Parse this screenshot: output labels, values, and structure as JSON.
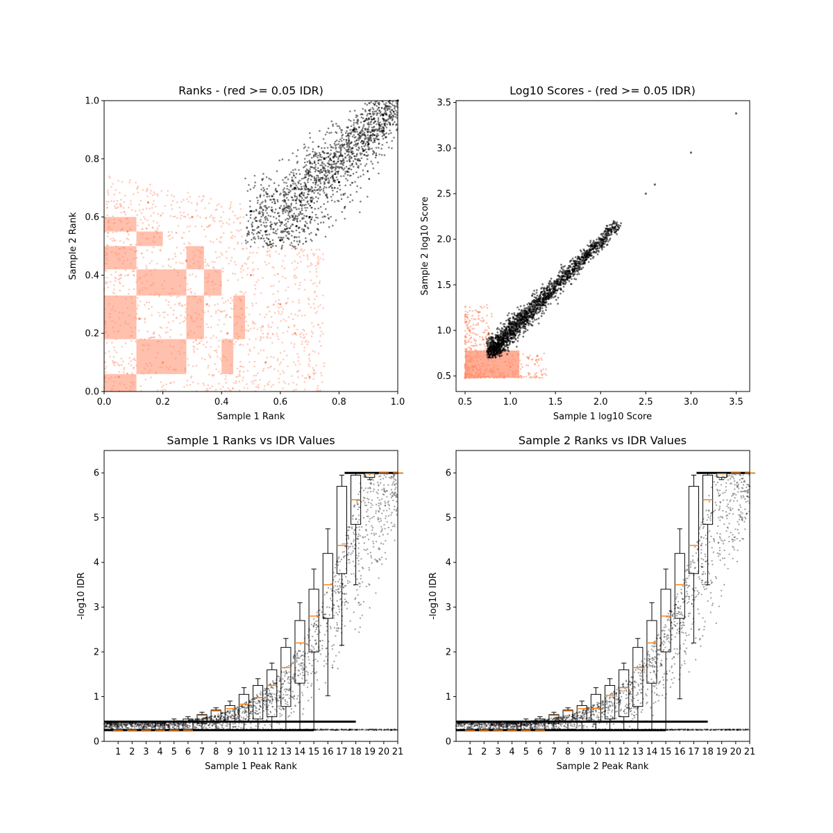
{
  "chart_data": [
    {
      "type": "scatter",
      "title": "Ranks - (red >= 0.05 IDR)",
      "xlabel": "Sample 1 Rank",
      "ylabel": "Sample 2 Rank",
      "xlim": [
        0.0,
        1.0
      ],
      "ylim": [
        0.0,
        1.0
      ],
      "xticks": [
        "0.0",
        "0.2",
        "0.4",
        "0.6",
        "0.8",
        "1.0"
      ],
      "yticks": [
        "0.0",
        "0.2",
        "0.4",
        "0.6",
        "0.8",
        "1.0"
      ],
      "colors": {
        "fail": "#ff8c69",
        "pass": "#000000"
      },
      "series": [
        {
          "summary": "IDR >= 0.05 (red) – dense blocky grid in lower-left region",
          "points": [
            [
              0.05,
              0.05
            ],
            [
              0.12,
              0.25
            ],
            [
              0.2,
              0.1
            ],
            [
              0.28,
              0.45
            ],
            [
              0.35,
              0.3
            ],
            [
              0.42,
              0.2
            ],
            [
              0.5,
              0.4
            ],
            [
              0.55,
              0.1
            ],
            [
              0.6,
              0.3
            ],
            [
              0.08,
              0.55
            ],
            [
              0.15,
              0.65
            ],
            [
              0.3,
              0.6
            ],
            [
              0.65,
              0.2
            ],
            [
              0.7,
              0.05
            ]
          ]
        },
        {
          "summary": "IDR < 0.05 (black) – upper-right fan region",
          "points": [
            [
              0.5,
              0.62
            ],
            [
              0.55,
              0.55
            ],
            [
              0.6,
              0.52
            ],
            [
              0.65,
              0.7
            ],
            [
              0.7,
              0.6
            ],
            [
              0.75,
              0.8
            ],
            [
              0.8,
              0.72
            ],
            [
              0.85,
              0.9
            ],
            [
              0.9,
              0.85
            ],
            [
              0.95,
              0.95
            ],
            [
              1.0,
              1.0
            ]
          ]
        }
      ]
    },
    {
      "type": "scatter",
      "title": "Log10 Scores - (red >= 0.05 IDR)",
      "xlabel": "Sample 1 log10 Score",
      "ylabel": "Sample 2 log10 Score",
      "xlim": [
        0.4,
        3.65
      ],
      "ylim": [
        0.33,
        3.52
      ],
      "xticks": [
        0.5,
        1.0,
        1.5,
        2.0,
        2.5,
        3.0,
        3.5
      ],
      "yticks": [
        0.5,
        1.0,
        1.5,
        2.0,
        2.5,
        3.0,
        3.5
      ],
      "colors": {
        "fail": "#ff8c69",
        "pass": "#000000"
      },
      "series": [
        {
          "summary": "IDR >= 0.05 (red) – lower-left cluster",
          "points": [
            [
              0.5,
              0.48
            ],
            [
              0.6,
              0.6
            ],
            [
              0.7,
              0.9
            ],
            [
              0.8,
              0.55
            ],
            [
              1.0,
              0.6
            ],
            [
              1.2,
              0.7
            ],
            [
              1.3,
              0.72
            ],
            [
              0.55,
              1.0
            ],
            [
              0.65,
              1.2
            ]
          ]
        },
        {
          "summary": "IDR < 0.05 (black) – diagonal band",
          "points": [
            [
              0.75,
              0.72
            ],
            [
              0.9,
              0.95
            ],
            [
              1.0,
              1.05
            ],
            [
              1.2,
              1.25
            ],
            [
              1.5,
              1.5
            ],
            [
              1.8,
              1.75
            ],
            [
              2.0,
              1.95
            ],
            [
              2.2,
              2.15
            ],
            [
              2.5,
              2.5
            ],
            [
              2.6,
              2.6
            ],
            [
              3.0,
              2.95
            ],
            [
              3.5,
              3.38
            ]
          ]
        }
      ]
    },
    {
      "type": "scatter",
      "title": "Sample 1 Ranks vs IDR Values",
      "xlabel": "Sample 1 Peak Rank",
      "ylabel": "-log10 IDR",
      "xlim": [
        0,
        21
      ],
      "ylim": [
        0,
        6.5
      ],
      "xticks": [
        "1",
        "2",
        "3",
        "4",
        "5",
        "6",
        "7",
        "8",
        "9",
        "10",
        "11",
        "12",
        "13",
        "14",
        "15",
        "16",
        "17",
        "18",
        "19",
        "20",
        "21"
      ],
      "yticks": [
        0,
        1,
        2,
        3,
        4,
        5,
        6
      ],
      "boxplot_medians": [
        0.25,
        0.25,
        0.25,
        0.25,
        0.25,
        0.25,
        0.58,
        0.68,
        0.73,
        0.83,
        0.98,
        1.25,
        1.65,
        2.2,
        2.8,
        3.5,
        4.38,
        5.4,
        5.98,
        6.0,
        6.0
      ],
      "boxplot_q1": [
        0.25,
        0.25,
        0.25,
        0.25,
        0.25,
        0.25,
        0.4,
        0.45,
        0.45,
        0.45,
        0.5,
        0.55,
        0.78,
        1.3,
        2.0,
        2.75,
        3.75,
        4.85,
        5.9,
        6.0,
        6.0
      ],
      "boxplot_q3": [
        0.25,
        0.25,
        0.25,
        0.4,
        0.45,
        0.5,
        0.6,
        0.7,
        0.8,
        1.05,
        1.25,
        1.6,
        2.1,
        2.7,
        3.4,
        4.2,
        5.7,
        5.95,
        6.0,
        6.0,
        6.0
      ],
      "boxplot_whisker_low": [
        0.25,
        0.25,
        0.25,
        0.25,
        0.25,
        0.25,
        0.25,
        0.25,
        0.25,
        0.25,
        0.25,
        0.25,
        0.25,
        0.25,
        0.25,
        1.02,
        2.15,
        3.5,
        5.85,
        6.0,
        6.0
      ],
      "boxplot_whisker_high": [
        0.25,
        0.25,
        0.25,
        0.45,
        0.5,
        0.55,
        0.65,
        0.75,
        0.9,
        1.2,
        1.4,
        1.75,
        2.3,
        3.1,
        3.85,
        4.75,
        5.95,
        6.0,
        6.0,
        6.0,
        6.0
      ]
    },
    {
      "type": "scatter",
      "title": "Sample 2 Ranks vs IDR Values",
      "xlabel": "Sample 2 Peak Rank",
      "ylabel": "-log10 IDR",
      "xlim": [
        0,
        21
      ],
      "ylim": [
        0,
        6.5
      ],
      "xticks": [
        "1",
        "2",
        "3",
        "4",
        "5",
        "6",
        "7",
        "8",
        "9",
        "10",
        "11",
        "12",
        "13",
        "14",
        "15",
        "16",
        "17",
        "18",
        "19",
        "20",
        "21"
      ],
      "yticks": [
        0,
        1,
        2,
        3,
        4,
        5,
        6
      ],
      "boxplot_medians": [
        0.25,
        0.25,
        0.25,
        0.25,
        0.25,
        0.25,
        0.58,
        0.68,
        0.73,
        0.74,
        1.03,
        1.2,
        1.65,
        2.2,
        2.8,
        3.5,
        4.38,
        5.4,
        5.98,
        6.0,
        6.0
      ],
      "boxplot_q1": [
        0.25,
        0.25,
        0.25,
        0.25,
        0.25,
        0.25,
        0.4,
        0.45,
        0.45,
        0.45,
        0.5,
        0.55,
        0.78,
        1.3,
        2.0,
        2.75,
        3.75,
        4.85,
        5.9,
        6.0,
        6.0
      ],
      "boxplot_q3": [
        0.25,
        0.25,
        0.25,
        0.4,
        0.45,
        0.5,
        0.6,
        0.7,
        0.8,
        1.05,
        1.25,
        1.6,
        2.1,
        2.7,
        3.4,
        4.2,
        5.7,
        5.95,
        6.0,
        6.0,
        6.0
      ],
      "boxplot_whisker_low": [
        0.25,
        0.25,
        0.25,
        0.25,
        0.25,
        0.25,
        0.25,
        0.25,
        0.25,
        0.25,
        0.25,
        0.25,
        0.25,
        0.25,
        0.25,
        0.95,
        2.2,
        3.5,
        5.85,
        6.0,
        6.0
      ],
      "boxplot_whisker_high": [
        0.25,
        0.25,
        0.25,
        0.45,
        0.5,
        0.55,
        0.65,
        0.75,
        0.9,
        1.2,
        1.4,
        1.75,
        2.3,
        3.1,
        3.85,
        4.75,
        5.95,
        6.0,
        6.0,
        6.0,
        6.0
      ]
    }
  ]
}
